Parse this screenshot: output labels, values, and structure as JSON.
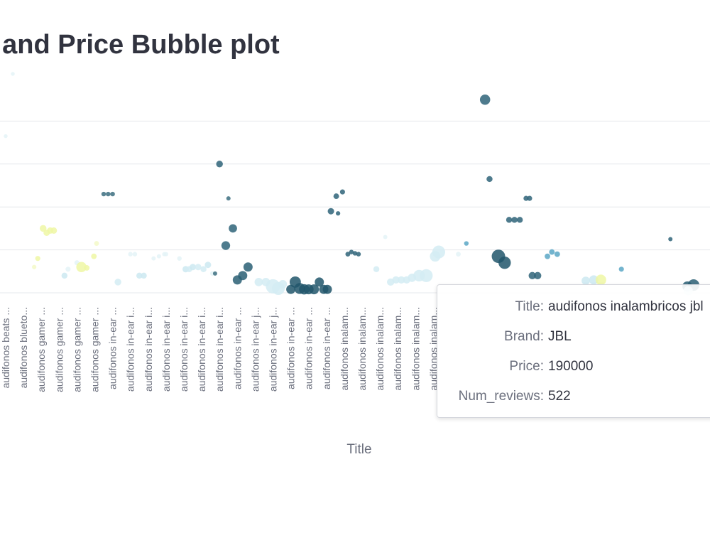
{
  "header": {
    "title": "l and Price Bubble plot"
  },
  "chart_data": {
    "type": "scatter",
    "title": "l and Price Bubble plot",
    "xlabel": "Title",
    "ylabel": "",
    "ylim": [
      0,
      500000
    ],
    "grid_values": [
      0,
      100000,
      200000,
      300000,
      400000
    ],
    "categories": [
      "audifonos beats ...",
      "audifonos blueto...",
      "audifonos gamer ...",
      "audifonos gamer ...",
      "audifonos gamer ...",
      "audifonos gamer ...",
      "audifonos in-ear ...",
      "audifonos in-ear i...",
      "audifonos in-ear i...",
      "audifonos in-ear i...",
      "audifonos in-ear i...",
      "audifonos in-ear i...",
      "audifonos in-ear i...",
      "audifonos in-ear ...",
      "audifonos in-ear j...",
      "audifonos in-ear j...",
      "audifonos in-ear ...",
      "audifonos in-ear ...",
      "audifonos in-ear ...",
      "audifonos inalam...",
      "audifonos inalam...",
      "audifonos inalam...",
      "audifonos inalam...",
      "audifonos inalam...",
      "audifonos inalam..."
    ],
    "points": [
      {
        "x": 0,
        "price": 365000,
        "reviews": 2,
        "color": "#e4f3f7"
      },
      {
        "x": 0.4,
        "price": 510000,
        "reviews": 2,
        "color": "#e4f3f7"
      },
      {
        "x": 1.6,
        "price": 60000,
        "reviews": 5,
        "color": "#f3f9c8"
      },
      {
        "x": 1.8,
        "price": 80000,
        "reviews": 10,
        "color": "#eef7a4"
      },
      {
        "x": 2.1,
        "price": 150000,
        "reviews": 30,
        "color": "#eef7a4"
      },
      {
        "x": 2.3,
        "price": 140000,
        "reviews": 25,
        "color": "#eef7a4"
      },
      {
        "x": 2.5,
        "price": 145000,
        "reviews": 25,
        "color": "#eef7a4"
      },
      {
        "x": 2.7,
        "price": 145000,
        "reviews": 25,
        "color": "#eef7a4"
      },
      {
        "x": 3.3,
        "price": 40000,
        "reviews": 20,
        "color": "#cce9f1"
      },
      {
        "x": 3.5,
        "price": 55000,
        "reviews": 10,
        "color": "#e4f3f7"
      },
      {
        "x": 4.0,
        "price": 70000,
        "reviews": 10,
        "color": "#e4f3f7"
      },
      {
        "x": 4.25,
        "price": 60000,
        "reviews": 110,
        "color": "#eef7a4"
      },
      {
        "x": 4.55,
        "price": 58000,
        "reviews": 15,
        "color": "#eef7a4"
      },
      {
        "x": 4.95,
        "price": 85000,
        "reviews": 15,
        "color": "#eef7a4"
      },
      {
        "x": 5.1,
        "price": 115000,
        "reviews": 8,
        "color": "#f3f9c8"
      },
      {
        "x": 5.5,
        "price": 230000,
        "reviews": 6,
        "color": "#3c6e80"
      },
      {
        "x": 5.75,
        "price": 230000,
        "reviews": 6,
        "color": "#3c6e80"
      },
      {
        "x": 6.0,
        "price": 230000,
        "reviews": 6,
        "color": "#3c6e80"
      },
      {
        "x": 6.3,
        "price": 25000,
        "reviews": 30,
        "color": "#d4ecf3"
      },
      {
        "x": 7.0,
        "price": 90000,
        "reviews": 6,
        "color": "#e4f3f7"
      },
      {
        "x": 7.25,
        "price": 90000,
        "reviews": 6,
        "color": "#e4f3f7"
      },
      {
        "x": 7.5,
        "price": 40000,
        "reviews": 20,
        "color": "#cce9f1"
      },
      {
        "x": 7.75,
        "price": 40000,
        "reviews": 20,
        "color": "#cce9f1"
      },
      {
        "x": 8.3,
        "price": 80000,
        "reviews": 4,
        "color": "#e4f3f7"
      },
      {
        "x": 8.6,
        "price": 85000,
        "reviews": 4,
        "color": "#e4f3f7"
      },
      {
        "x": 8.9,
        "price": 90000,
        "reviews": 4,
        "color": "#e4f3f7"
      },
      {
        "x": 9.0,
        "price": 90000,
        "reviews": 4,
        "color": "#e4f3f7"
      },
      {
        "x": 9.75,
        "price": 80000,
        "reviews": 6,
        "color": "#e4f3f7"
      },
      {
        "x": 10.1,
        "price": 55000,
        "reviews": 25,
        "color": "#cce9f1"
      },
      {
        "x": 10.3,
        "price": 55000,
        "reviews": 20,
        "color": "#d4ecf3"
      },
      {
        "x": 10.5,
        "price": 60000,
        "reviews": 25,
        "color": "#cce9f1"
      },
      {
        "x": 10.8,
        "price": 60000,
        "reviews": 25,
        "color": "#d4ecf3"
      },
      {
        "x": 11.1,
        "price": 55000,
        "reviews": 20,
        "color": "#d4ecf3"
      },
      {
        "x": 11.35,
        "price": 65000,
        "reviews": 25,
        "color": "#cce9f1"
      },
      {
        "x": 11.6,
        "price": 45000,
        "reviews": 6,
        "color": "#e4f3f7"
      },
      {
        "x": 11.75,
        "price": 45000,
        "reviews": 4,
        "color": "#3c6e80"
      },
      {
        "x": 12.0,
        "price": 300000,
        "reviews": 30,
        "color": "#2f6479"
      },
      {
        "x": 12.5,
        "price": 220000,
        "reviews": 4,
        "color": "#3c6e80"
      },
      {
        "x": 12.75,
        "price": 150000,
        "reviews": 60,
        "color": "#2f6479"
      },
      {
        "x": 12.35,
        "price": 110000,
        "reviews": 70,
        "color": "#2f6479"
      },
      {
        "x": 13.0,
        "price": 30000,
        "reviews": 80,
        "color": "#2a5f74"
      },
      {
        "x": 13.3,
        "price": 40000,
        "reviews": 80,
        "color": "#2a5f74"
      },
      {
        "x": 13.6,
        "price": 60000,
        "reviews": 80,
        "color": "#2a5f74"
      },
      {
        "x": 14.2,
        "price": 25000,
        "reviews": 60,
        "color": "#d4ecf3"
      },
      {
        "x": 14.6,
        "price": 25000,
        "reviews": 60,
        "color": "#d4ecf3"
      },
      {
        "x": 15.0,
        "price": 15000,
        "reviews": 260,
        "color": "#d4ecf3"
      },
      {
        "x": 15.3,
        "price": 10000,
        "reviews": 200,
        "color": "#d4ecf3"
      },
      {
        "x": 15.55,
        "price": 20000,
        "reviews": 60,
        "color": "#d4ecf3"
      },
      {
        "x": 16.0,
        "price": 8000,
        "reviews": 80,
        "color": "#21566b"
      },
      {
        "x": 16.25,
        "price": 25000,
        "reviews": 140,
        "color": "#21566b"
      },
      {
        "x": 16.5,
        "price": 10000,
        "reviews": 130,
        "color": "#21566b"
      },
      {
        "x": 16.75,
        "price": 8000,
        "reviews": 110,
        "color": "#21566b"
      },
      {
        "x": 17.0,
        "price": 8000,
        "reviews": 100,
        "color": "#21566b"
      },
      {
        "x": 17.3,
        "price": 8000,
        "reviews": 100,
        "color": "#21566b"
      },
      {
        "x": 17.6,
        "price": 25000,
        "reviews": 80,
        "color": "#21566b"
      },
      {
        "x": 17.85,
        "price": 8000,
        "reviews": 80,
        "color": "#21566b"
      },
      {
        "x": 18.05,
        "price": 8000,
        "reviews": 80,
        "color": "#21566b"
      },
      {
        "x": 18.25,
        "price": 190000,
        "reviews": 25,
        "color": "#2f6479"
      },
      {
        "x": 18.55,
        "price": 225000,
        "reviews": 15,
        "color": "#2f6479"
      },
      {
        "x": 18.9,
        "price": 235000,
        "reviews": 10,
        "color": "#2f6479"
      },
      {
        "x": 18.65,
        "price": 185000,
        "reviews": 5,
        "color": "#2f6479"
      },
      {
        "x": 19.2,
        "price": 90000,
        "reviews": 8,
        "color": "#2f6479"
      },
      {
        "x": 19.4,
        "price": 95000,
        "reviews": 6,
        "color": "#2f6479"
      },
      {
        "x": 19.6,
        "price": 92000,
        "reviews": 6,
        "color": "#2f6479"
      },
      {
        "x": 19.8,
        "price": 90000,
        "reviews": 6,
        "color": "#2f6479"
      },
      {
        "x": 20.8,
        "price": 55000,
        "reviews": 20,
        "color": "#d4ecf3"
      },
      {
        "x": 21.3,
        "price": 130000,
        "reviews": 4,
        "color": "#e4f3f7"
      },
      {
        "x": 21.6,
        "price": 25000,
        "reviews": 40,
        "color": "#d4ecf3"
      },
      {
        "x": 21.9,
        "price": 30000,
        "reviews": 40,
        "color": "#d4ecf3"
      },
      {
        "x": 22.2,
        "price": 30000,
        "reviews": 40,
        "color": "#d4ecf3"
      },
      {
        "x": 22.5,
        "price": 30000,
        "reviews": 40,
        "color": "#d4ecf3"
      },
      {
        "x": 22.8,
        "price": 35000,
        "reviews": 60,
        "color": "#d4ecf3"
      },
      {
        "x": 23.2,
        "price": 40000,
        "reviews": 150,
        "color": "#d4ecf3"
      },
      {
        "x": 23.6,
        "price": 40000,
        "reviews": 200,
        "color": "#d4ecf3"
      },
      {
        "x": 24.1,
        "price": 85000,
        "reviews": 120,
        "color": "#d4ecf3"
      },
      {
        "x": 24.3,
        "price": 95000,
        "reviews": 200,
        "color": "#d4ecf3"
      },
      {
        "x": 25.4,
        "price": 90000,
        "reviews": 8,
        "color": "#e4f3f7"
      },
      {
        "x": 25.85,
        "price": 115000,
        "reviews": 6,
        "color": "#5ba7c6"
      },
      {
        "x": 26.9,
        "price": 450000,
        "reviews": 110,
        "color": "#2f6479"
      },
      {
        "x": 27.15,
        "price": 265000,
        "reviews": 20,
        "color": "#2f6479"
      },
      {
        "x": 27.65,
        "price": 85000,
        "reviews": 222,
        "color": "#21566b"
      },
      {
        "x": 28.0,
        "price": 70000,
        "reviews": 180,
        "color": "#21566b"
      },
      {
        "x": 28.25,
        "price": 170000,
        "reviews": 20,
        "color": "#2f6479"
      },
      {
        "x": 28.55,
        "price": 170000,
        "reviews": 20,
        "color": "#2f6479"
      },
      {
        "x": 28.85,
        "price": 170000,
        "reviews": 20,
        "color": "#2f6479"
      },
      {
        "x": 29.2,
        "price": 220000,
        "reviews": 10,
        "color": "#2f6479"
      },
      {
        "x": 29.4,
        "price": 220000,
        "reviews": 10,
        "color": "#2f6479"
      },
      {
        "x": 29.55,
        "price": 40000,
        "reviews": 40,
        "color": "#2f6479"
      },
      {
        "x": 29.85,
        "price": 40000,
        "reviews": 40,
        "color": "#2f6479"
      },
      {
        "x": 30.4,
        "price": 85000,
        "reviews": 15,
        "color": "#5ba7c6"
      },
      {
        "x": 30.65,
        "price": 95000,
        "reviews": 15,
        "color": "#5ba7c6"
      },
      {
        "x": 30.95,
        "price": 90000,
        "reviews": 15,
        "color": "#5ba7c6"
      },
      {
        "x": 32.55,
        "price": 28000,
        "reviews": 60,
        "color": "#cce9f1"
      },
      {
        "x": 33.0,
        "price": 30000,
        "reviews": 80,
        "color": "#cce9f1"
      },
      {
        "x": 33.4,
        "price": 30000,
        "reviews": 120,
        "color": "#eef7a4"
      },
      {
        "x": 34.55,
        "price": 55000,
        "reviews": 10,
        "color": "#5ba7c6"
      },
      {
        "x": 37.3,
        "price": 125000,
        "reviews": 4,
        "color": "#2f6479"
      },
      {
        "x": 38.25,
        "price": 15000,
        "reviews": 100,
        "color": "#2a5f74"
      },
      {
        "x": 38.6,
        "price": 18000,
        "reviews": 150,
        "color": "#2a5f74"
      },
      {
        "x": 38.3,
        "price": 5000,
        "reviews": 80,
        "color": "#d4ecf3"
      }
    ],
    "tooltip": {
      "title_key": "Title:",
      "title_value": "audifonos inalambricos jbl",
      "brand_key": "Brand:",
      "brand_value": "JBL",
      "price_key": "Price:",
      "price_value": "190000",
      "reviews_key": "Num_reviews:",
      "reviews_value": "522"
    }
  }
}
